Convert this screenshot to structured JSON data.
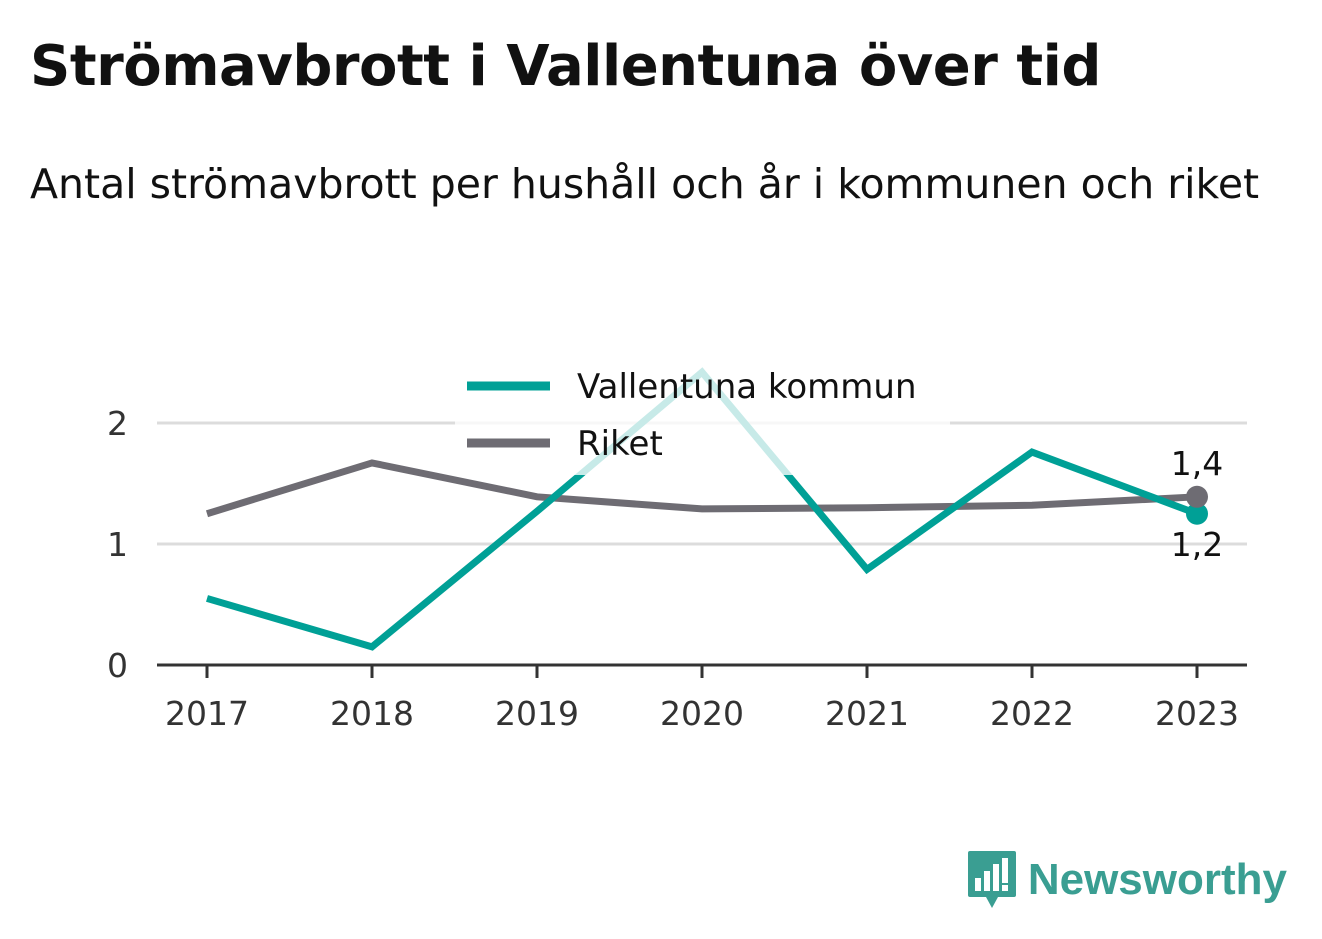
{
  "title": "Strömavbrott i Vallentuna över tid",
  "subtitle": "Antal strömavbrott per hushåll och år i kommunen och riket",
  "logo": {
    "text": "Newsworthy",
    "icon": "bar-chart-speech-bubble-icon",
    "color": "#3a9e92"
  },
  "chart_data": {
    "type": "line",
    "x": [
      "2017",
      "2018",
      "2019",
      "2020",
      "2021",
      "2022",
      "2023"
    ],
    "y_ticks": [
      0,
      1,
      2
    ],
    "y_tick_labels": [
      "0",
      "1",
      "2"
    ],
    "ylim": [
      0,
      2
    ],
    "grid": true,
    "legend_placement": "top-center",
    "series": [
      {
        "name": "Vallentuna kommun",
        "color": "#00a096",
        "values": [
          0.55,
          0.15,
          1.27,
          2.42,
          0.79,
          1.76,
          1.25
        ],
        "end_label": "1,2",
        "end_label_position": "below"
      },
      {
        "name": "Riket",
        "color": "#6e6c73",
        "values": [
          1.25,
          1.67,
          1.39,
          1.29,
          1.3,
          1.32,
          1.39
        ],
        "end_label": "1,4",
        "end_label_position": "above"
      }
    ]
  }
}
